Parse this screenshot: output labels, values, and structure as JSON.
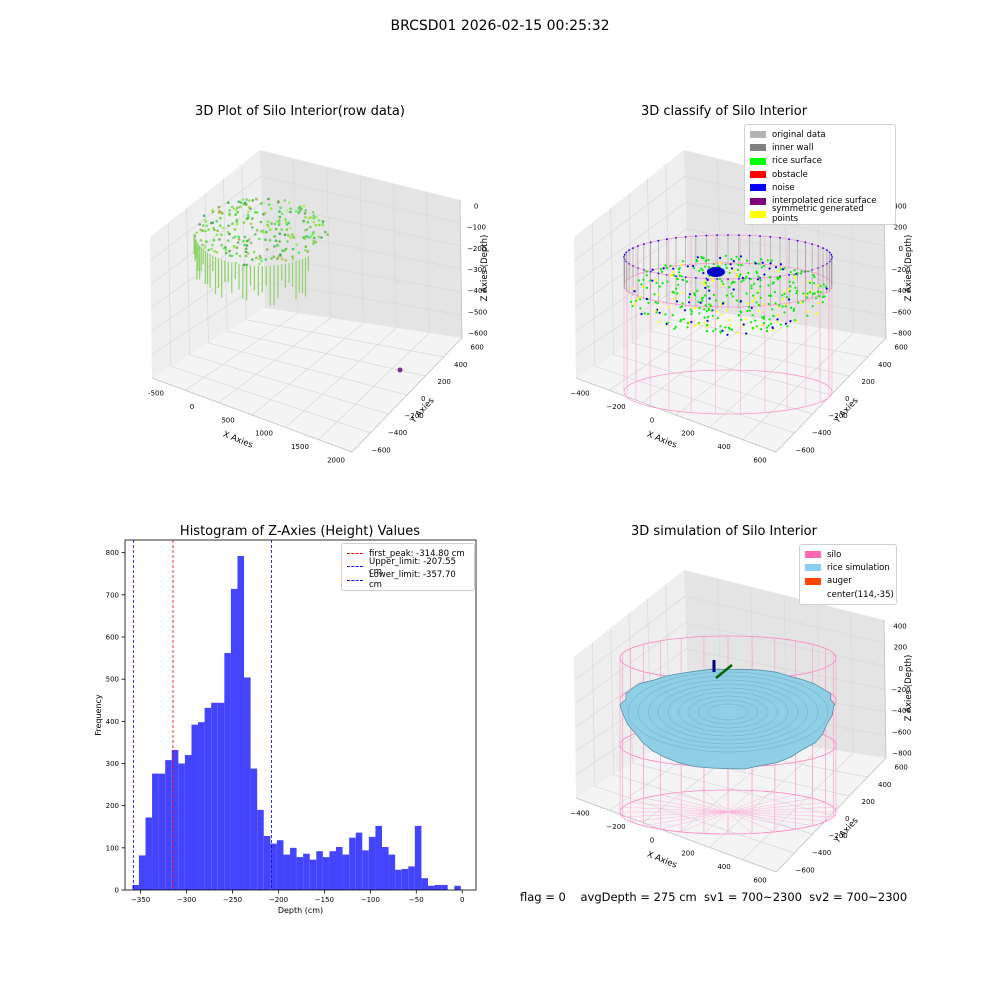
{
  "figure": {
    "suptitle": "BRCSD01 2026-02-15 00:25:32",
    "status_line": "flag = 0    avgDepth = 275 cm  sv1 = 700~2300  sv2 = 700~2300"
  },
  "panels": {
    "raw": {
      "title": "3D Plot of Silo Interior(row data)",
      "xlabel": "X Axies",
      "ylabel": "Y Axies",
      "zlabel": "Z Axies (Depth)",
      "xticks": [
        "-500",
        "0",
        "500",
        "1000",
        "1500",
        "2000"
      ],
      "yticks": [
        "600",
        "400",
        "200",
        "0",
        "−200",
        "−400",
        "−600"
      ],
      "zticks": [
        "0",
        "−100",
        "−200",
        "−300",
        "−400",
        "−500",
        "−600"
      ]
    },
    "classify": {
      "title": "3D classify of Silo Interior",
      "xlabel": "X Axies",
      "ylabel": "Y Axies",
      "zlabel": "Z Axies (Depth)",
      "xticks": [
        "−400",
        "−200",
        "0",
        "200",
        "400",
        "600"
      ],
      "yticks": [
        "600",
        "400",
        "200",
        "0",
        "−200",
        "−400",
        "−600"
      ],
      "zticks": [
        "400",
        "200",
        "0",
        "−200",
        "−400",
        "−600",
        "−800"
      ],
      "legend": [
        {
          "label": "original data",
          "color": "#b3b3b3"
        },
        {
          "label": "inner wall",
          "color": "#808080"
        },
        {
          "label": "rice surface",
          "color": "#00ff00"
        },
        {
          "label": "obstacle",
          "color": "#ff0000"
        },
        {
          "label": "noise",
          "color": "#0000ff"
        },
        {
          "label": "interpolated rice surface",
          "color": "#800080"
        },
        {
          "label": "symmetric generated points",
          "color": "#ffff00"
        }
      ]
    },
    "simulation": {
      "title": "3D simulation of Silo Interior",
      "xlabel": "X Axies",
      "ylabel": "Y Axies",
      "zlabel": "Z Axies (Depth)",
      "xticks": [
        "−400",
        "−200",
        "0",
        "200",
        "400",
        "600"
      ],
      "yticks": [
        "600",
        "400",
        "200",
        "0",
        "−200",
        "−400",
        "−600"
      ],
      "zticks": [
        "400",
        "200",
        "0",
        "−200",
        "−400",
        "−600",
        "−800"
      ],
      "legend": [
        {
          "label": "silo",
          "color": "#ff69b4"
        },
        {
          "label": "rice simulation",
          "color": "#87ceeb"
        },
        {
          "label": "auger",
          "color": "#ff4500"
        },
        {
          "label": "center(114,-35)",
          "color": ""
        }
      ]
    }
  },
  "chart_data": {
    "type": "bar",
    "title": "Histogram of Z-Axies (Height) Values",
    "xlabel": "Depth (cm)",
    "ylabel": "Frequency",
    "xlim": [
      -367,
      15
    ],
    "ylim": [
      0,
      830
    ],
    "bin_start": -359,
    "bin_width": 7.15,
    "values": [
      12,
      82,
      172,
      276,
      276,
      308,
      332,
      300,
      320,
      392,
      398,
      432,
      444,
      444,
      562,
      714,
      792,
      504,
      288,
      190,
      128,
      110,
      118,
      84,
      100,
      78,
      86,
      72,
      92,
      78,
      92,
      102,
      84,
      124,
      136,
      94,
      126,
      152,
      102,
      84,
      48,
      50,
      56,
      152,
      28,
      10,
      12,
      12,
      0,
      10
    ],
    "bar_color": "#4444ff",
    "xticks": [
      -350,
      -300,
      -250,
      -200,
      -150,
      -100,
      -50,
      0
    ],
    "xtick_labels": [
      "−350",
      "−300",
      "−250",
      "−200",
      "−150",
      "−100",
      "−50",
      "0"
    ],
    "yticks": [
      0,
      100,
      200,
      300,
      400,
      500,
      600,
      700,
      800
    ],
    "ytick_labels": [
      "0",
      "100",
      "200",
      "300",
      "400",
      "500",
      "600",
      "700",
      "800"
    ],
    "vlines": [
      {
        "x": -314.8,
        "color": "#ff0000",
        "label": "first_peak: -314.80 cm"
      },
      {
        "x": -207.55,
        "color": "#0000ff",
        "label": "Upper_limit: -207.55 cm"
      },
      {
        "x": -357.7,
        "color": "#0000ff",
        "label": "Lower_limit: -357.70 cm"
      }
    ]
  }
}
